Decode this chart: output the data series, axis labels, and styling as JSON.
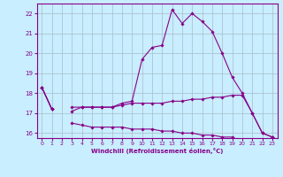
{
  "x_values": [
    0,
    1,
    2,
    3,
    4,
    5,
    6,
    7,
    8,
    9,
    10,
    11,
    12,
    13,
    14,
    15,
    16,
    17,
    18,
    19,
    20,
    21,
    22,
    23
  ],
  "line1": [
    18.3,
    17.2,
    null,
    17.1,
    17.3,
    17.3,
    17.3,
    17.3,
    17.4,
    17.5,
    17.5,
    17.5,
    17.5,
    17.6,
    17.6,
    17.7,
    17.7,
    17.8,
    17.8,
    17.9,
    17.9,
    17.0,
    16.0,
    15.8
  ],
  "line2": [
    18.3,
    17.2,
    null,
    16.5,
    16.4,
    16.3,
    16.3,
    16.3,
    16.3,
    16.2,
    16.2,
    16.2,
    16.1,
    16.1,
    16.0,
    16.0,
    15.9,
    15.9,
    15.8,
    15.8,
    null,
    null,
    null,
    15.8
  ],
  "line3": [
    18.3,
    17.2,
    null,
    17.3,
    17.3,
    17.3,
    17.3,
    17.3,
    17.5,
    17.6,
    19.7,
    20.3,
    20.4,
    22.2,
    21.5,
    22.0,
    21.6,
    21.1,
    20.0,
    18.8,
    18.0,
    17.0,
    16.0,
    15.8
  ],
  "xlim": [
    -0.5,
    23.5
  ],
  "ylim": [
    15.75,
    22.5
  ],
  "yticks": [
    16,
    17,
    18,
    19,
    20,
    21,
    22
  ],
  "xticks": [
    0,
    1,
    2,
    3,
    4,
    5,
    6,
    7,
    8,
    9,
    10,
    11,
    12,
    13,
    14,
    15,
    16,
    17,
    18,
    19,
    20,
    21,
    22,
    23
  ],
  "line_color": "#880088",
  "bg_color": "#c8eeff",
  "grid_color": "#aabbcc",
  "xlabel": "Windchill (Refroidissement éolien,°C)",
  "marker": "D",
  "marker_size": 1.8,
  "linewidth": 0.8
}
